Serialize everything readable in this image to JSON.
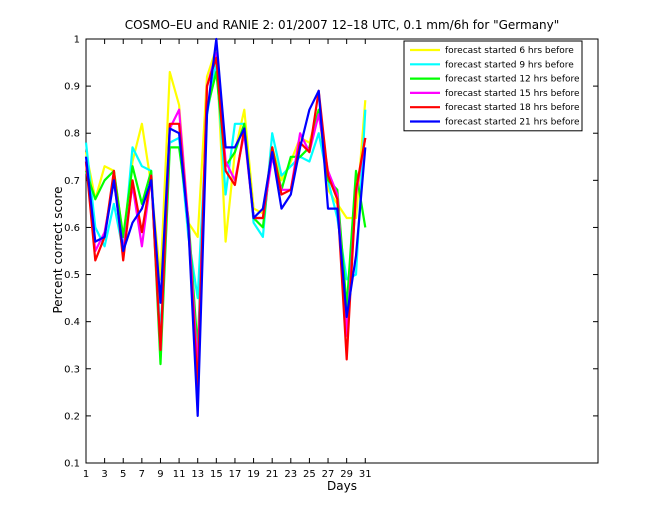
{
  "chart_data": {
    "type": "line",
    "title": "COSMO–EU and RANIE 2: 01/2007 12–18 UTC, 0.1 mm/6h for \"Germany\"",
    "xlabel": "Days",
    "ylabel": "Percent correct score",
    "xlim": [
      1,
      56
    ],
    "ylim": [
      0.1,
      1.0
    ],
    "xticks": [
      1,
      3,
      5,
      7,
      9,
      11,
      13,
      15,
      17,
      19,
      21,
      23,
      25,
      27,
      29,
      31
    ],
    "yticks": [
      0.1,
      0.2,
      0.3,
      0.4,
      0.5,
      0.6,
      0.7,
      0.8,
      0.9,
      1.0
    ],
    "grid": false,
    "legend_position": "top-right",
    "x": [
      1,
      2,
      3,
      4,
      5,
      6,
      7,
      8,
      9,
      10,
      11,
      12,
      13,
      14,
      15,
      16,
      17,
      18,
      19,
      20,
      21,
      22,
      23,
      24,
      25,
      26,
      27,
      28,
      29,
      30,
      31
    ],
    "series": [
      {
        "name": "forecast started 6 hrs before",
        "color": "#ffff00",
        "values": [
          0.76,
          0.66,
          0.73,
          0.72,
          0.58,
          0.74,
          0.82,
          0.69,
          0.49,
          0.93,
          0.86,
          0.61,
          0.58,
          0.92,
          0.98,
          0.57,
          0.76,
          0.85,
          0.64,
          0.63,
          0.77,
          0.7,
          0.74,
          0.79,
          0.78,
          0.85,
          0.68,
          0.65,
          0.62,
          0.62,
          0.87
        ]
      },
      {
        "name": "forecast started 9 hrs before",
        "color": "#00ffff",
        "values": [
          0.78,
          0.6,
          0.56,
          0.65,
          0.55,
          0.77,
          0.73,
          0.72,
          0.37,
          0.78,
          0.79,
          0.58,
          0.45,
          0.84,
          0.95,
          0.67,
          0.82,
          0.82,
          0.61,
          0.58,
          0.8,
          0.71,
          0.73,
          0.75,
          0.74,
          0.8,
          0.7,
          0.62,
          0.49,
          0.5,
          0.85
        ]
      },
      {
        "name": "forecast started 12 hrs before",
        "color": "#00ff00",
        "values": [
          0.72,
          0.66,
          0.7,
          0.72,
          0.58,
          0.73,
          0.65,
          0.72,
          0.31,
          0.77,
          0.77,
          0.62,
          0.34,
          0.85,
          0.93,
          0.73,
          0.76,
          0.82,
          0.62,
          0.6,
          0.77,
          0.68,
          0.75,
          0.75,
          0.77,
          0.85,
          0.7,
          0.68,
          0.43,
          0.72,
          0.6
        ]
      },
      {
        "name": "forecast started 15 hrs before",
        "color": "#ff00ff",
        "values": [
          0.74,
          0.55,
          0.59,
          0.7,
          0.55,
          0.69,
          0.56,
          0.71,
          0.34,
          0.81,
          0.85,
          0.61,
          0.3,
          0.9,
          0.97,
          0.74,
          0.7,
          0.8,
          0.62,
          0.62,
          0.75,
          0.68,
          0.68,
          0.8,
          0.76,
          0.84,
          0.72,
          0.67,
          0.37,
          0.67,
          0.79
        ]
      },
      {
        "name": "forecast started 18 hrs before",
        "color": "#ff0000",
        "values": [
          0.74,
          0.53,
          0.58,
          0.72,
          0.53,
          0.7,
          0.59,
          0.71,
          0.34,
          0.82,
          0.82,
          0.6,
          0.26,
          0.9,
          0.96,
          0.72,
          0.69,
          0.81,
          0.62,
          0.62,
          0.77,
          0.67,
          0.68,
          0.78,
          0.76,
          0.89,
          0.71,
          0.66,
          0.32,
          0.68,
          0.79
        ]
      },
      {
        "name": "forecast started 21 hrs before",
        "color": "#0000ff",
        "values": [
          0.75,
          0.57,
          0.58,
          0.7,
          0.55,
          0.61,
          0.64,
          0.7,
          0.44,
          0.81,
          0.8,
          0.6,
          0.2,
          0.84,
          1.0,
          0.77,
          0.77,
          0.81,
          0.62,
          0.64,
          0.76,
          0.64,
          0.67,
          0.77,
          0.85,
          0.89,
          0.64,
          0.64,
          0.41,
          0.54,
          0.77
        ]
      }
    ]
  }
}
